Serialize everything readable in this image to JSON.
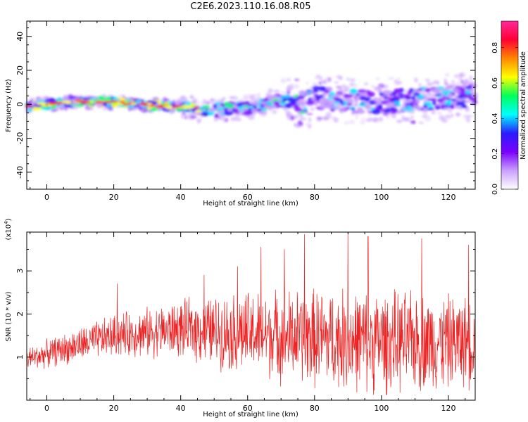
{
  "title": "C2E6.2023.110.16.08.R05",
  "chart_data": [
    {
      "type": "heatmap",
      "title": "C2E6.2023.110.16.08.R05",
      "xlabel": "Height of straight line (km)",
      "ylabel": "Frequency (Hz)",
      "xlim": [
        -6,
        128
      ],
      "ylim": [
        -50,
        49
      ],
      "x_ticks": [
        0,
        20,
        40,
        60,
        80,
        100,
        120
      ],
      "y_ticks": [
        40,
        20,
        0,
        -20,
        -40
      ],
      "colorbar": {
        "label": "Normalized spectral amplitude",
        "range": [
          0,
          0.95
        ],
        "ticks": [
          0.0,
          0.2,
          0.4,
          0.6,
          0.8
        ],
        "colormap": "rainbow",
        "colors": [
          "#ffffff",
          "#c9a0ff",
          "#7a00ff",
          "#2a1cff",
          "#00ffff",
          "#00ff5a",
          "#ffff00",
          "#ff8800",
          "#ff0033",
          "#ff2a9a"
        ]
      },
      "grid": false
    },
    {
      "type": "line",
      "xlabel": "Height of straight line (km)",
      "ylabel": "SNR (10 * v/v)",
      "y_multiplier": "(x10",
      "y_multiplier_exp": "4",
      "y_multiplier_close": ")",
      "xlim": [
        -6,
        128
      ],
      "ylim": [
        0,
        3.9
      ],
      "x_ticks": [
        0,
        20,
        40,
        60,
        80,
        100,
        120
      ],
      "y_ticks": [
        1,
        2,
        3
      ],
      "series": [
        {
          "color": "#ee2222",
          "trend": {
            "x": [
              -6,
              20,
              40,
              60,
              80,
              100,
              128
            ],
            "mean": [
              0.95,
              1.5,
              1.65,
              1.55,
              1.45,
              1.35,
              1.35
            ],
            "spread": [
              0.3,
              0.55,
              0.75,
              1.1,
              1.3,
              1.35,
              1.2
            ]
          },
          "peaks": [
            {
              "x": 21,
              "y": 2.7
            },
            {
              "x": 47,
              "y": 2.9
            },
            {
              "x": 57,
              "y": 3.1
            },
            {
              "x": 64,
              "y": 3.55
            },
            {
              "x": 71,
              "y": 3.5
            },
            {
              "x": 77,
              "y": 3.85
            },
            {
              "x": 90,
              "y": 3.92
            },
            {
              "x": 96,
              "y": 3.8
            },
            {
              "x": 112,
              "y": 3.75
            },
            {
              "x": 126,
              "y": 3.6
            }
          ]
        }
      ],
      "grid": false
    }
  ]
}
